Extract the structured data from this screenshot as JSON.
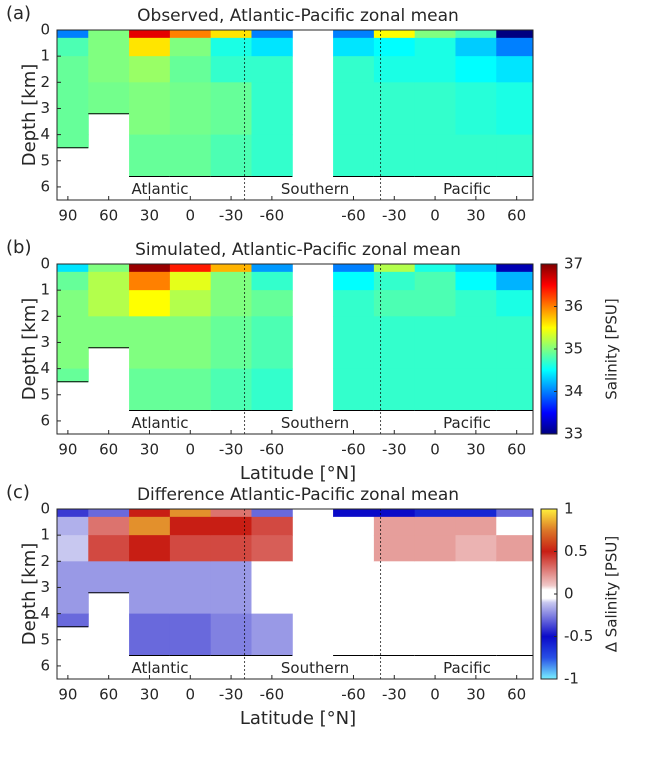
{
  "chart_data": [
    {
      "type": "heatmap",
      "panel_label": "(a)",
      "title": "Observed, Atlantic-Pacific zonal mean",
      "ylabel": "Depth [km]",
      "colormap": "jet",
      "clim": [
        33,
        37
      ],
      "x": [
        0,
        30,
        60,
        90,
        120,
        150,
        180,
        210,
        240,
        270,
        300,
        330
      ],
      "depth_edges": [
        0,
        0.3,
        1,
        2,
        4,
        6
      ],
      "bottom_depth": [
        4.5,
        3.2,
        5.6,
        5.6,
        5.6,
        5.6,
        null,
        5.6,
        5.6,
        5.6,
        5.6,
        5.6
      ],
      "values": [
        [
          34.0,
          34.8,
          34.9,
          34.9,
          34.9
        ],
        [
          35.0,
          35.0,
          35.0,
          34.95,
          34.9
        ],
        [
          36.6,
          35.6,
          35.1,
          35.0,
          34.9
        ],
        [
          36.0,
          35.0,
          34.9,
          34.95,
          34.9
        ],
        [
          35.6,
          34.6,
          34.7,
          34.9,
          34.8
        ],
        [
          34.0,
          34.4,
          34.7,
          34.7,
          34.7
        ],
        [
          null,
          null,
          null,
          null,
          null
        ],
        [
          34.0,
          34.4,
          34.7,
          34.7,
          34.7
        ],
        [
          35.5,
          34.5,
          34.6,
          34.7,
          34.7
        ],
        [
          35.0,
          34.6,
          34.6,
          34.7,
          34.7
        ],
        [
          34.8,
          34.3,
          34.5,
          34.65,
          34.7
        ],
        [
          33.0,
          34.0,
          34.4,
          34.6,
          34.7
        ]
      ],
      "xlim": [
        -8,
        342
      ],
      "ylim": [
        0,
        6.5
      ],
      "y_inverted": true,
      "xticks": [
        {
          "value": 0,
          "label": "90"
        },
        {
          "value": 30,
          "label": "60"
        },
        {
          "value": 60,
          "label": "30"
        },
        {
          "value": 90,
          "label": "0"
        },
        {
          "value": 120,
          "label": "-30"
        },
        {
          "value": 150,
          "label": "-60"
        },
        {
          "value": 210,
          "label": "-60"
        },
        {
          "value": 240,
          "label": "-30"
        },
        {
          "value": 270,
          "label": "0"
        },
        {
          "value": 300,
          "label": "30"
        },
        {
          "value": 330,
          "label": "60"
        }
      ],
      "yticks": [
        0,
        1,
        2,
        3,
        4,
        5,
        6
      ],
      "boundaries": [
        130,
        230
      ],
      "annotations": [
        "Atlantic",
        "Southern",
        "Pacific"
      ]
    },
    {
      "type": "heatmap",
      "panel_label": "(b)",
      "title": "Simulated, Atlantic-Pacific zonal mean",
      "ylabel": "Depth [km]",
      "xlabel": "Latitude [°N]",
      "colormap": "jet",
      "clim": [
        33,
        37
      ],
      "colorbar": {
        "label": "Salinity [PSU]",
        "ticks": [
          33,
          34,
          35,
          36,
          37
        ]
      },
      "x": [
        0,
        30,
        60,
        90,
        120,
        150,
        180,
        210,
        240,
        270,
        300,
        330
      ],
      "depth_edges": [
        0,
        0.3,
        1,
        2,
        4,
        6
      ],
      "bottom_depth": [
        4.5,
        3.2,
        5.6,
        5.6,
        5.6,
        5.6,
        null,
        5.6,
        5.6,
        5.6,
        5.6,
        5.6
      ],
      "values": [
        [
          34.4,
          34.9,
          35.0,
          35.0,
          34.9
        ],
        [
          35.0,
          35.2,
          35.2,
          35.0,
          34.9
        ],
        [
          36.9,
          36.0,
          35.5,
          35.0,
          34.9
        ],
        [
          36.4,
          35.4,
          35.2,
          35.0,
          34.9
        ],
        [
          35.8,
          35.0,
          35.0,
          34.9,
          34.8
        ],
        [
          34.1,
          34.7,
          34.9,
          34.8,
          34.7
        ],
        [
          null,
          null,
          null,
          null,
          null
        ],
        [
          34.0,
          34.5,
          34.7,
          34.7,
          34.7
        ],
        [
          35.2,
          34.7,
          34.8,
          34.7,
          34.7
        ],
        [
          34.6,
          34.8,
          34.8,
          34.7,
          34.7
        ],
        [
          34.3,
          34.5,
          34.7,
          34.7,
          34.7
        ],
        [
          33.2,
          34.2,
          34.6,
          34.7,
          34.7
        ]
      ],
      "xlim": [
        -8,
        342
      ],
      "ylim": [
        0,
        6.5
      ],
      "y_inverted": true,
      "xticks": [
        {
          "value": 0,
          "label": "90"
        },
        {
          "value": 30,
          "label": "60"
        },
        {
          "value": 60,
          "label": "30"
        },
        {
          "value": 90,
          "label": "0"
        },
        {
          "value": 120,
          "label": "-30"
        },
        {
          "value": 150,
          "label": "-60"
        },
        {
          "value": 210,
          "label": "-60"
        },
        {
          "value": 240,
          "label": "-30"
        },
        {
          "value": 270,
          "label": "0"
        },
        {
          "value": 300,
          "label": "30"
        },
        {
          "value": 330,
          "label": "60"
        }
      ],
      "yticks": [
        0,
        1,
        2,
        3,
        4,
        5,
        6
      ],
      "boundaries": [
        130,
        230
      ],
      "annotations": [
        "Atlantic",
        "Southern",
        "Pacific"
      ]
    },
    {
      "type": "heatmap",
      "panel_label": "(c)",
      "title": "Difference Atlantic-Pacific zonal mean",
      "ylabel": "Depth [km]",
      "xlabel": "Latitude [°N]",
      "colormap": "diverging",
      "clim": [
        -1,
        1
      ],
      "colorbar": {
        "label": "Δ Salinity [PSU]",
        "ticks": [
          -1,
          -0.5,
          0,
          0.5,
          1
        ]
      },
      "x": [
        0,
        30,
        60,
        90,
        120,
        150,
        180,
        210,
        240,
        270,
        300,
        330
      ],
      "depth_edges": [
        0,
        0.3,
        1,
        2,
        4,
        6
      ],
      "bottom_depth": [
        4.5,
        3.2,
        5.6,
        5.6,
        5.6,
        5.6,
        null,
        5.6,
        5.6,
        5.6,
        5.6,
        5.6
      ],
      "values": [
        [
          -0.4,
          -0.15,
          -0.1,
          -0.2,
          -0.3
        ],
        [
          -0.3,
          0.3,
          0.4,
          -0.2,
          -0.3
        ],
        [
          0.5,
          0.8,
          0.5,
          -0.2,
          -0.3
        ],
        [
          0.8,
          0.5,
          0.4,
          -0.2,
          -0.3
        ],
        [
          0.3,
          0.5,
          0.4,
          -0.2,
          -0.25
        ],
        [
          -0.3,
          0.4,
          0.35,
          0.05,
          -0.2
        ],
        [
          null,
          null,
          null,
          null,
          null
        ],
        [
          -0.5,
          0.05,
          0.0,
          0.0,
          0.0
        ],
        [
          -0.5,
          0.2,
          0.2,
          0.0,
          0.0
        ],
        [
          -0.6,
          0.2,
          0.2,
          0.0,
          0.0
        ],
        [
          -0.6,
          0.2,
          0.15,
          0.0,
          0.0
        ],
        [
          -0.3,
          0.0,
          0.2,
          0.0,
          0.0
        ]
      ],
      "xlim": [
        -8,
        342
      ],
      "ylim": [
        0,
        6.5
      ],
      "y_inverted": true,
      "xticks": [
        {
          "value": 0,
          "label": "90"
        },
        {
          "value": 30,
          "label": "60"
        },
        {
          "value": 60,
          "label": "30"
        },
        {
          "value": 90,
          "label": "0"
        },
        {
          "value": 120,
          "label": "-30"
        },
        {
          "value": 150,
          "label": "-60"
        },
        {
          "value": 210,
          "label": "-60"
        },
        {
          "value": 240,
          "label": "-30"
        },
        {
          "value": 270,
          "label": "0"
        },
        {
          "value": 300,
          "label": "30"
        },
        {
          "value": 330,
          "label": "60"
        }
      ],
      "yticks": [
        0,
        1,
        2,
        3,
        4,
        5,
        6
      ],
      "boundaries": [
        130,
        230
      ],
      "annotations": [
        "Atlantic",
        "Southern",
        "Pacific"
      ]
    }
  ]
}
